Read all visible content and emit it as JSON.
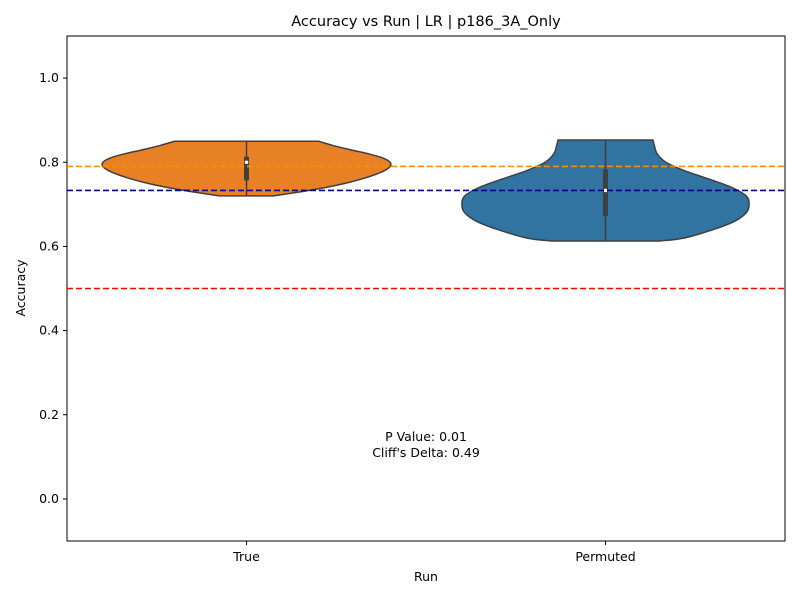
{
  "chart_data": {
    "type": "violin",
    "title": "Accuracy vs Run | LR | p186_3A_Only",
    "xlabel": "Run",
    "ylabel": "Accuracy",
    "ylim": [
      -0.1,
      1.1
    ],
    "yticks": [
      0.0,
      0.2,
      0.4,
      0.6,
      0.8,
      1.0
    ],
    "ytick_labels": [
      "0.0",
      "0.2",
      "0.4",
      "0.6",
      "0.8",
      "1.0"
    ],
    "categories": [
      "True",
      "Permuted"
    ],
    "grid": false,
    "violins": [
      {
        "category": "True",
        "color": "#e88126",
        "min": 0.72,
        "max": 0.85,
        "q1": 0.757,
        "median": 0.8,
        "q3": 0.813,
        "density_profile": [
          [
            0.72,
            0.19
          ],
          [
            0.73,
            0.38
          ],
          [
            0.74,
            0.55
          ],
          [
            0.75,
            0.69
          ],
          [
            0.76,
            0.8
          ],
          [
            0.77,
            0.89
          ],
          [
            0.78,
            0.96
          ],
          [
            0.79,
            1.0
          ],
          [
            0.8,
            1.0
          ],
          [
            0.81,
            0.95
          ],
          [
            0.82,
            0.85
          ],
          [
            0.83,
            0.72
          ],
          [
            0.84,
            0.6
          ],
          [
            0.85,
            0.5
          ]
        ]
      },
      {
        "category": "Permuted",
        "color": "#3274a1",
        "min": 0.613,
        "max": 0.853,
        "q1": 0.672,
        "median": 0.733,
        "q3": 0.783,
        "density_profile": [
          [
            0.613,
            0.38
          ],
          [
            0.62,
            0.55
          ],
          [
            0.64,
            0.75
          ],
          [
            0.66,
            0.9
          ],
          [
            0.68,
            0.98
          ],
          [
            0.7,
            1.0
          ],
          [
            0.72,
            0.98
          ],
          [
            0.74,
            0.88
          ],
          [
            0.76,
            0.72
          ],
          [
            0.78,
            0.55
          ],
          [
            0.8,
            0.42
          ],
          [
            0.82,
            0.36
          ],
          [
            0.84,
            0.34
          ],
          [
            0.853,
            0.33
          ]
        ]
      }
    ],
    "reference_lines": [
      {
        "y": 0.79,
        "color": "#ff8c00",
        "style": "dashed"
      },
      {
        "y": 0.733,
        "color": "#00008b",
        "style": "dashed"
      },
      {
        "y": 0.5,
        "color": "#ff0000",
        "style": "dashed"
      }
    ],
    "annotation": {
      "lines": [
        "P Value: 0.01",
        "Cliff's Delta: 0.49"
      ],
      "x_category_position": 0.5,
      "y": 0.13
    }
  }
}
